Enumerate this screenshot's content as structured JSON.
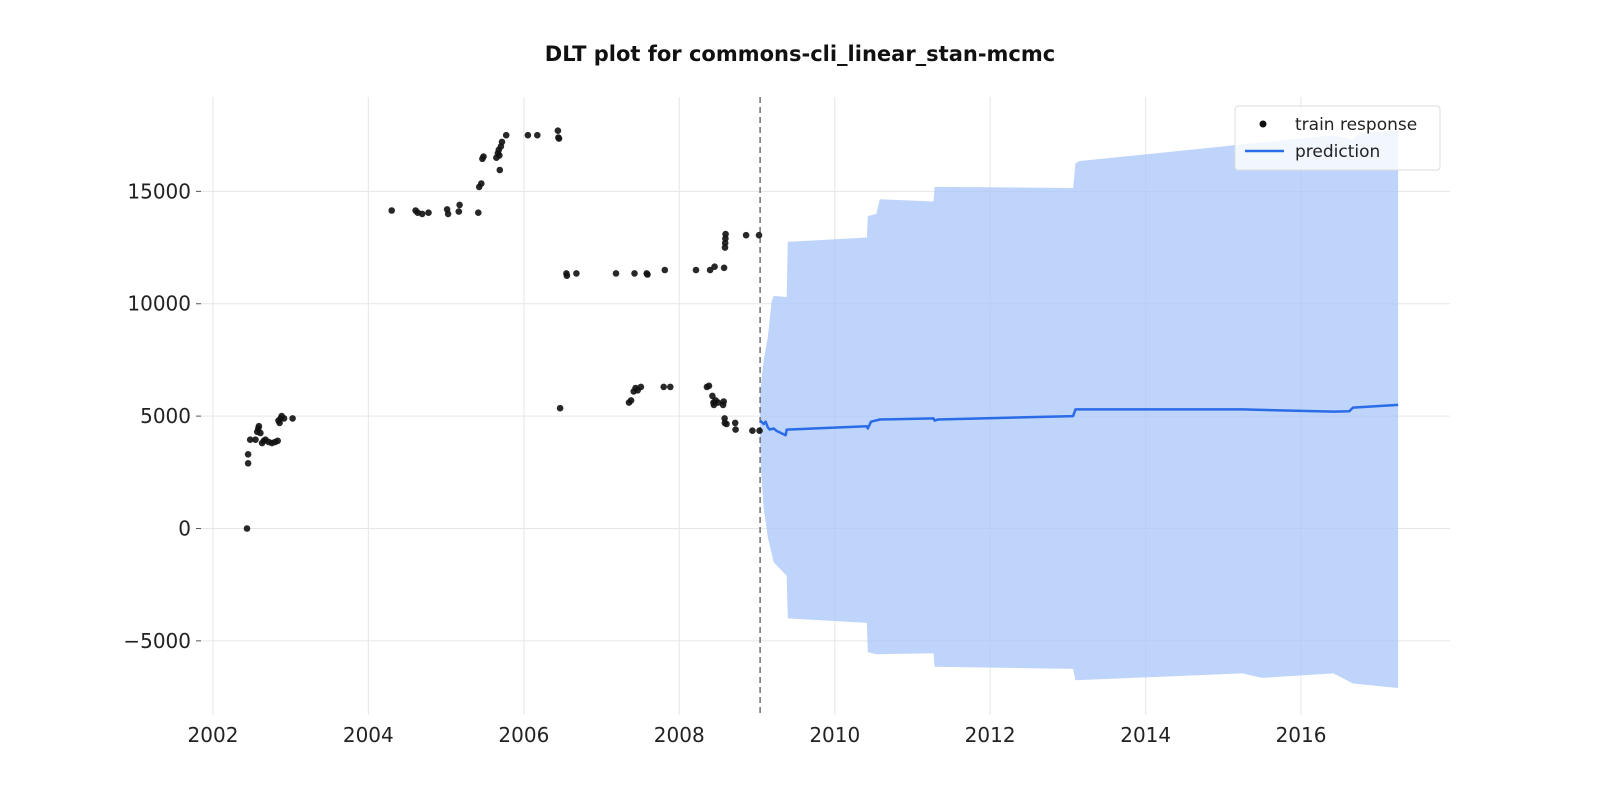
{
  "chart_data": {
    "type": "line",
    "title": "DLT plot for commons-cli_linear_stan-mcmc",
    "xlabel": "",
    "ylabel": "",
    "x_axis": "date",
    "xlim": [
      "2001-11-01",
      "2017-12-01"
    ],
    "ylim": [
      -8300,
      19200
    ],
    "grid": true,
    "legend_position": "top-right",
    "x_ticks": [
      "2002",
      "2004",
      "2006",
      "2008",
      "2010",
      "2012",
      "2014",
      "2016"
    ],
    "y_ticks": [
      -5000,
      0,
      5000,
      10000,
      15000
    ],
    "y_tick_labels": [
      "−5000",
      "0",
      "5000",
      "10000",
      "15000"
    ],
    "cutoff_date": "2009-01-15",
    "colors": {
      "train": "#111111",
      "prediction": "#2a6be8",
      "band": "#a8c5f8",
      "cutoff": "#666666"
    },
    "series": [
      {
        "name": "train response",
        "kind": "scatter",
        "points": [
          [
            "2002-06-10",
            0
          ],
          [
            "2002-06-15",
            2900
          ],
          [
            "2002-06-15",
            3300
          ],
          [
            "2002-06-25",
            3950
          ],
          [
            "2002-07-20",
            3950
          ],
          [
            "2002-07-28",
            4300
          ],
          [
            "2002-08-02",
            4450
          ],
          [
            "2002-08-05",
            4550
          ],
          [
            "2002-08-12",
            4250
          ],
          [
            "2002-08-20",
            3800
          ],
          [
            "2002-08-28",
            3900
          ],
          [
            "2002-09-05",
            3950
          ],
          [
            "2002-09-20",
            3850
          ],
          [
            "2002-10-05",
            3800
          ],
          [
            "2002-10-20",
            3850
          ],
          [
            "2002-11-01",
            3900
          ],
          [
            "2002-11-05",
            4800
          ],
          [
            "2002-11-10",
            4700
          ],
          [
            "2002-11-15",
            4900
          ],
          [
            "2002-11-20",
            5000
          ],
          [
            "2002-12-01",
            4900
          ],
          [
            "2003-01-10",
            4900
          ],
          [
            "2004-04-20",
            14150
          ],
          [
            "2004-08-10",
            14150
          ],
          [
            "2004-08-20",
            14050
          ],
          [
            "2004-09-10",
            14000
          ],
          [
            "2004-10-10",
            14050
          ],
          [
            "2005-01-05",
            14200
          ],
          [
            "2005-01-10",
            14000
          ],
          [
            "2005-03-01",
            14100
          ],
          [
            "2005-03-05",
            14400
          ],
          [
            "2005-06-01",
            14050
          ],
          [
            "2005-06-05",
            15200
          ],
          [
            "2005-06-15",
            15350
          ],
          [
            "2005-06-20",
            16450
          ],
          [
            "2005-06-25",
            16550
          ],
          [
            "2005-08-25",
            16500
          ],
          [
            "2005-09-01",
            16700
          ],
          [
            "2005-09-05",
            16850
          ],
          [
            "2005-09-08",
            16600
          ],
          [
            "2005-09-10",
            15950
          ],
          [
            "2005-09-15",
            17000
          ],
          [
            "2005-09-20",
            17200
          ],
          [
            "2005-10-10",
            17500
          ],
          [
            "2006-01-20",
            17500
          ],
          [
            "2006-03-05",
            17500
          ],
          [
            "2006-06-10",
            17700
          ],
          [
            "2006-06-12",
            17400
          ],
          [
            "2006-06-15",
            17350
          ],
          [
            "2006-06-20",
            5350
          ],
          [
            "2006-07-20",
            11350
          ],
          [
            "2006-07-22",
            11250
          ],
          [
            "2006-09-05",
            11350
          ],
          [
            "2007-03-10",
            11350
          ],
          [
            "2007-05-10",
            5600
          ],
          [
            "2007-05-20",
            5700
          ],
          [
            "2007-06-01",
            6100
          ],
          [
            "2007-06-05",
            11350
          ],
          [
            "2007-06-10",
            6250
          ],
          [
            "2007-06-20",
            6150
          ],
          [
            "2007-07-05",
            6300
          ],
          [
            "2007-08-01",
            11350
          ],
          [
            "2007-08-05",
            11300
          ],
          [
            "2007-10-20",
            6300
          ],
          [
            "2007-10-25",
            11500
          ],
          [
            "2007-11-20",
            6300
          ],
          [
            "2008-03-20",
            11500
          ],
          [
            "2008-05-10",
            6300
          ],
          [
            "2008-05-20",
            6350
          ],
          [
            "2008-05-25",
            11500
          ],
          [
            "2008-06-05",
            5900
          ],
          [
            "2008-06-10",
            5600
          ],
          [
            "2008-06-12",
            5500
          ],
          [
            "2008-06-15",
            11650
          ],
          [
            "2008-06-20",
            5700
          ],
          [
            "2008-07-01",
            5600
          ],
          [
            "2008-07-25",
            5500
          ],
          [
            "2008-07-28",
            5650
          ],
          [
            "2008-07-30",
            11600
          ],
          [
            "2008-08-01",
            4900
          ],
          [
            "2008-08-02",
            4700
          ],
          [
            "2008-08-03",
            12500
          ],
          [
            "2008-08-04",
            12700
          ],
          [
            "2008-08-05",
            12900
          ],
          [
            "2008-08-06",
            13100
          ],
          [
            "2008-08-10",
            4650
          ],
          [
            "2008-09-20",
            4700
          ],
          [
            "2008-09-22",
            4400
          ],
          [
            "2008-11-10",
            13050
          ],
          [
            "2008-12-10",
            4350
          ],
          [
            "2009-01-10",
            13050
          ],
          [
            "2009-01-12",
            4350
          ]
        ]
      },
      {
        "name": "prediction",
        "kind": "line",
        "points": [
          [
            "2009-01-15",
            4800
          ],
          [
            "2009-02-01",
            4650
          ],
          [
            "2009-02-10",
            4750
          ],
          [
            "2009-02-20",
            4500
          ],
          [
            "2009-03-01",
            4400
          ],
          [
            "2009-03-20",
            4450
          ],
          [
            "2009-04-01",
            4350
          ],
          [
            "2009-05-15",
            4150
          ],
          [
            "2009-05-20",
            4400
          ],
          [
            "2010-06-01",
            4550
          ],
          [
            "2010-06-05",
            4450
          ],
          [
            "2010-06-20",
            4750
          ],
          [
            "2010-08-01",
            4850
          ],
          [
            "2011-04-10",
            4900
          ],
          [
            "2011-04-15",
            4800
          ],
          [
            "2011-05-01",
            4850
          ],
          [
            "2013-01-25",
            5000
          ],
          [
            "2013-02-05",
            5300
          ],
          [
            "2015-04-01",
            5300
          ],
          [
            "2016-06-01",
            5200
          ],
          [
            "2016-08-15",
            5220
          ],
          [
            "2016-09-01",
            5380
          ],
          [
            "2017-04-01",
            5500
          ]
        ]
      }
    ],
    "interval": {
      "upper": [
        [
          "2009-01-15",
          6000
        ],
        [
          "2009-02-01",
          7500
        ],
        [
          "2009-02-20",
          8500
        ],
        [
          "2009-03-10",
          10100
        ],
        [
          "2009-03-20",
          10350
        ],
        [
          "2009-05-20",
          10300
        ],
        [
          "2009-05-25",
          12750
        ],
        [
          "2010-06-01",
          12950
        ],
        [
          "2010-06-05",
          13900
        ],
        [
          "2010-07-15",
          14000
        ],
        [
          "2010-08-01",
          14650
        ],
        [
          "2011-04-10",
          14550
        ],
        [
          "2011-04-15",
          15200
        ],
        [
          "2013-01-25",
          15150
        ],
        [
          "2013-02-05",
          16250
        ],
        [
          "2013-02-25",
          16350
        ],
        [
          "2016-06-01",
          17500
        ],
        [
          "2016-09-01",
          17300
        ],
        [
          "2016-10-01",
          17600
        ],
        [
          "2017-04-01",
          17700
        ]
      ],
      "lower": [
        [
          "2009-01-15",
          3800
        ],
        [
          "2009-01-20",
          2500
        ],
        [
          "2009-02-01",
          900
        ],
        [
          "2009-02-20",
          -400
        ],
        [
          "2009-03-10",
          -1100
        ],
        [
          "2009-03-20",
          -1500
        ],
        [
          "2009-05-20",
          -2100
        ],
        [
          "2009-05-25",
          -4000
        ],
        [
          "2010-06-01",
          -4200
        ],
        [
          "2010-06-05",
          -5500
        ],
        [
          "2010-07-15",
          -5600
        ],
        [
          "2011-04-10",
          -5550
        ],
        [
          "2011-04-15",
          -6150
        ],
        [
          "2013-01-25",
          -6250
        ],
        [
          "2013-02-05",
          -6750
        ],
        [
          "2015-04-01",
          -6450
        ],
        [
          "2015-07-01",
          -6650
        ],
        [
          "2016-06-01",
          -6450
        ],
        [
          "2016-09-01",
          -6900
        ],
        [
          "2017-04-01",
          -7100
        ]
      ]
    }
  }
}
